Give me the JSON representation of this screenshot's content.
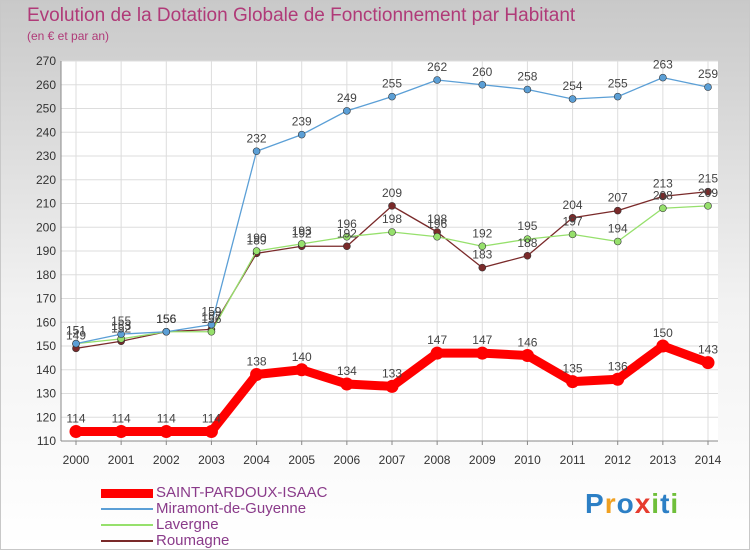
{
  "chart_data": {
    "type": "line",
    "title": "Evolution de la Dotation Globale de Fonctionnement par Habitant",
    "subtitle": "(en € et par an)",
    "xlabel": "",
    "ylabel": "",
    "ylim": [
      110,
      270
    ],
    "yticks": [
      110,
      120,
      130,
      140,
      150,
      160,
      170,
      180,
      190,
      200,
      210,
      220,
      230,
      240,
      250,
      260,
      270
    ],
    "categories": [
      "2000",
      "2001",
      "2002",
      "2003",
      "2004",
      "2005",
      "2006",
      "2007",
      "2008",
      "2009",
      "2010",
      "2011",
      "2012",
      "2013",
      "2014"
    ],
    "grid": true,
    "legend": "bottom-left",
    "series": [
      {
        "name": "SAINT-PARDOUX-ISAAC",
        "color": "#ff0000",
        "values": [
          114,
          114,
          114,
          114,
          138,
          140,
          134,
          133,
          147,
          147,
          146,
          135,
          136,
          150,
          143
        ]
      },
      {
        "name": "Miramont-de-Guyenne",
        "color": "#5b9fd6",
        "values": [
          151,
          155,
          156,
          159,
          232,
          239,
          249,
          255,
          262,
          260,
          258,
          254,
          255,
          263,
          259
        ]
      },
      {
        "name": "Lavergne",
        "color": "#96e06c",
        "values": [
          151,
          153,
          156,
          156,
          190,
          193,
          196,
          198,
          196,
          192,
          195,
          197,
          194,
          208,
          209
        ]
      },
      {
        "name": "Roumagne",
        "color": "#7a2a2a",
        "values": [
          149,
          152,
          156,
          157,
          189,
          192,
          192,
          209,
          198,
          183,
          188,
          204,
          207,
          213,
          215
        ]
      }
    ]
  },
  "logo": {
    "letters": [
      "P",
      "r",
      "o",
      "x",
      "i",
      "t",
      "i"
    ],
    "colors": [
      "#2c7fc5",
      "#f0a020",
      "#2c7fc5",
      "#e63b2e",
      "#6fbf3a",
      "#2c7fc5",
      "#6fbf3a"
    ]
  }
}
